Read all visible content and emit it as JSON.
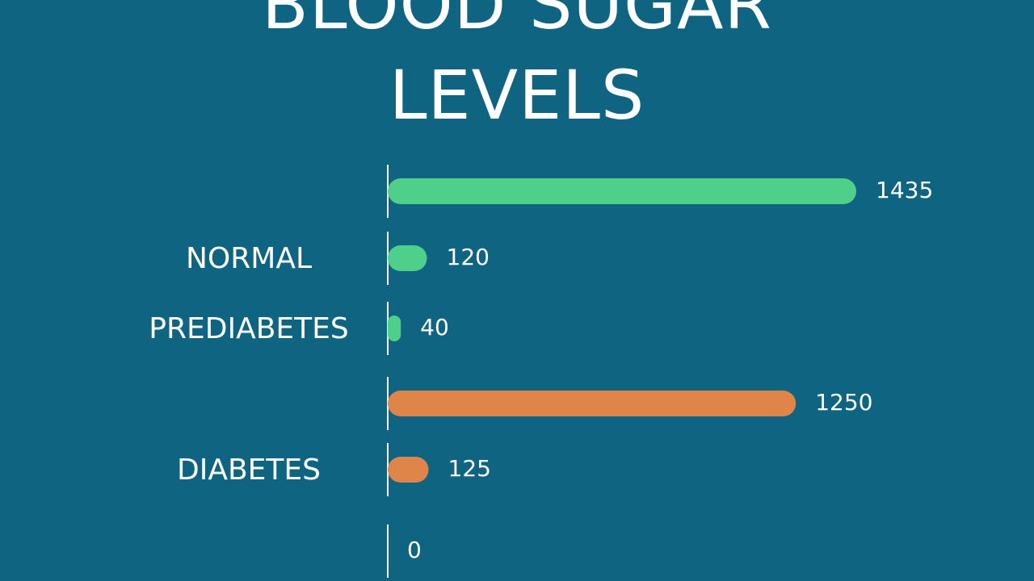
{
  "chart_data": {
    "type": "bar",
    "orientation": "horizontal",
    "title": "BLOOD SUGAR LEVELS",
    "categories": [
      null,
      "NORMAL",
      "PREDIABETES",
      null,
      "DIABETES",
      null
    ],
    "values": [
      1435,
      120,
      40,
      1250,
      125,
      0
    ],
    "colors": [
      "#4fd08a",
      "#4fd08a",
      "#4fd08a",
      "#e0854a",
      "#e0854a",
      "#e0854a"
    ]
  }
}
